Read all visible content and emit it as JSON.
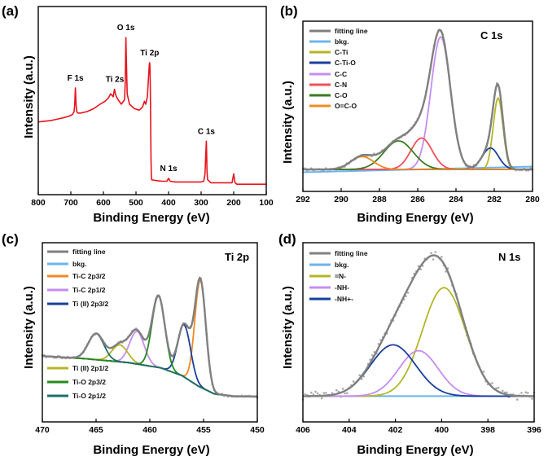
{
  "chart_data": [
    {
      "type": "line",
      "panel": "(a)",
      "xlabel": "Binding Energy (eV)",
      "ylabel": "Intensity (a.u.)",
      "xlim": [
        800,
        100
      ],
      "xticks": [
        800,
        700,
        600,
        500,
        400,
        300,
        200,
        100
      ],
      "color": "#e8141b",
      "peak_labels": [
        {
          "text": "O 1s",
          "x": 531
        },
        {
          "text": "F 1s",
          "x": 686
        },
        {
          "text": "Ti 2s",
          "x": 565
        },
        {
          "text": "Ti 2p",
          "x": 458
        },
        {
          "text": "N 1s",
          "x": 400
        },
        {
          "text": "C 1s",
          "x": 284
        }
      ],
      "series": [
        {
          "x": [
            800,
            780,
            760,
            740,
            720,
            705,
            695,
            690,
            688,
            686,
            684,
            682,
            678,
            670,
            650,
            630,
            610,
            595,
            585,
            578,
            570,
            566,
            563,
            560,
            555,
            545,
            535,
            533,
            531,
            529,
            527,
            520,
            505,
            490,
            480,
            474,
            470,
            465,
            461,
            459,
            458,
            457,
            456,
            455,
            454,
            453,
            452,
            440,
            420,
            405,
            400,
            395,
            380,
            350,
            320,
            300,
            292,
            288,
            286,
            284,
            283,
            282,
            280,
            270,
            250,
            220,
            205,
            200,
            196,
            190,
            160,
            130,
            100
          ],
          "y": [
            0.43,
            0.435,
            0.44,
            0.45,
            0.46,
            0.47,
            0.48,
            0.5,
            0.55,
            0.66,
            0.55,
            0.5,
            0.49,
            0.49,
            0.5,
            0.52,
            0.55,
            0.57,
            0.59,
            0.62,
            0.6,
            0.65,
            0.62,
            0.6,
            0.58,
            0.55,
            0.58,
            0.7,
            1.0,
            0.8,
            0.62,
            0.55,
            0.52,
            0.51,
            0.53,
            0.57,
            0.55,
            0.6,
            0.75,
            0.82,
            0.83,
            0.8,
            0.66,
            0.45,
            0.2,
            0.08,
            0.04,
            0.035,
            0.03,
            0.03,
            0.05,
            0.03,
            0.025,
            0.025,
            0.025,
            0.025,
            0.03,
            0.08,
            0.2,
            0.3,
            0.22,
            0.1,
            0.04,
            0.02,
            0.02,
            0.02,
            0.02,
            0.08,
            0.02,
            0.01,
            0.01,
            0.01,
            0.01
          ]
        }
      ]
    },
    {
      "type": "line",
      "panel": "(b)",
      "title": "C 1s",
      "xlabel": "Binding Energy (eV)",
      "ylabel": "Intensity (a.u.)",
      "xlim": [
        292,
        280
      ],
      "xticks": [
        292,
        290,
        288,
        286,
        284,
        282,
        280
      ],
      "legend": [
        "fitting line",
        "bkg.",
        "C-Ti",
        "C-Ti-O",
        "C-C",
        "C-N",
        "C-O",
        "O=C-O"
      ],
      "legend_position": "top-left",
      "series": [
        {
          "name": "fitting line",
          "color": "#808080",
          "baseline": 0.04,
          "components": [
            "C-Ti",
            "C-Ti-O",
            "C-C",
            "C-N",
            "C-O",
            "O=C-O"
          ]
        },
        {
          "name": "bkg.",
          "color": "#6cb4ee",
          "linear": [
            [
              292,
              0.02
            ],
            [
              280,
              0.06
            ]
          ]
        },
        {
          "name": "C-Ti",
          "color": "#b5b626",
          "center": 281.8,
          "height": 0.5,
          "fwhm": 0.6
        },
        {
          "name": "C-Ti-O",
          "color": "#1a3f9c",
          "center": 282.2,
          "height": 0.15,
          "fwhm": 1.0
        },
        {
          "name": "C-C",
          "color": "#c78cf2",
          "center": 284.8,
          "height": 0.93,
          "fwhm": 1.2
        },
        {
          "name": "C-N",
          "color": "#f0505a",
          "center": 285.8,
          "height": 0.22,
          "fwhm": 1.3
        },
        {
          "name": "C-O",
          "color": "#3a7d1f",
          "center": 287.0,
          "height": 0.2,
          "fwhm": 1.8
        },
        {
          "name": "O=C-O",
          "color": "#f08a24",
          "center": 288.9,
          "height": 0.09,
          "fwhm": 1.4
        }
      ]
    },
    {
      "type": "line",
      "panel": "(c)",
      "title": "Ti 2p",
      "xlabel": "Binding Energy (eV)",
      "ylabel": "Intensity (a.u.)",
      "xlim": [
        470,
        450
      ],
      "xticks": [
        470,
        465,
        460,
        455,
        450
      ],
      "legend": [
        "fitting line",
        "bkg.",
        "Ti-C 2p3/2",
        "Ti-C 2p1/2",
        "Ti (II) 2p3/2",
        "Ti (II) 2p1/2",
        "Ti-O 2p3/2",
        "Ti-O 2p1/2"
      ],
      "series": [
        {
          "name": "fitting line",
          "color": "#808080",
          "components": [
            "Ti-C 2p3/2",
            "Ti-C 2p1/2",
            "Ti (II) 2p3/2",
            "Ti (II) 2p1/2",
            "Ti-O 2p3/2",
            "Ti-O 2p1/2"
          ]
        },
        {
          "name": "bkg.",
          "color": "#6cb4ee",
          "points": [
            [
              470,
              0.33
            ],
            [
              466,
              0.31
            ],
            [
              462,
              0.28
            ],
            [
              459,
              0.24
            ],
            [
              457,
              0.18
            ],
            [
              455.5,
              0.1
            ],
            [
              454,
              0.04
            ],
            [
              452,
              0.02
            ],
            [
              450,
              0.02
            ]
          ]
        },
        {
          "name": "Ti-C 2p3/2",
          "color": "#f08a24",
          "center": 455.3,
          "height": 0.82,
          "fwhm": 1.2
        },
        {
          "name": "Ti-C 2p1/2",
          "color": "#c78cf2",
          "center": 461.2,
          "height": 0.25,
          "fwhm": 1.6
        },
        {
          "name": "Ti (II) 2p3/2",
          "color": "#1a3f9c",
          "center": 456.8,
          "height": 0.4,
          "fwhm": 1.4
        },
        {
          "name": "Ti (II) 2p1/2",
          "color": "#b5b626",
          "center": 462.8,
          "height": 0.13,
          "fwhm": 1.7
        },
        {
          "name": "Ti-O 2p3/2",
          "color": "#238a1c",
          "center": 459.2,
          "height": 0.55,
          "fwhm": 1.4
        },
        {
          "name": "Ti-O 2p1/2",
          "color": "#1e6f6a",
          "center": 465.0,
          "height": 0.2,
          "fwhm": 1.7
        }
      ]
    },
    {
      "type": "line",
      "panel": "(d)",
      "title": "N 1s",
      "xlabel": "Binding Energy (eV)",
      "ylabel": "Intensity (a.u.)",
      "xlim": [
        406,
        396
      ],
      "xticks": [
        406,
        404,
        402,
        400,
        398,
        396
      ],
      "legend": [
        "fitting line",
        "bkg.",
        "=N-",
        "-NH-",
        "-NH+-"
      ],
      "series": [
        {
          "name": "fitting line",
          "color": "#808080",
          "baseline": 0.02,
          "components": [
            "=N-",
            "-NH-",
            "-NH+-"
          ]
        },
        {
          "name": "bkg.",
          "color": "#6cb4ee",
          "linear": [
            [
              406,
              0.02
            ],
            [
              396,
              0.02
            ]
          ]
        },
        {
          "name": "=N-",
          "color": "#b5b626",
          "center": 399.9,
          "height": 0.74,
          "fwhm": 2.2
        },
        {
          "name": "-NH-",
          "color": "#c78cf2",
          "center": 401.0,
          "height": 0.31,
          "fwhm": 2.0
        },
        {
          "name": "-NH+-",
          "color": "#1a3f9c",
          "center": 402.1,
          "height": 0.35,
          "fwhm": 2.3
        }
      ]
    }
  ]
}
